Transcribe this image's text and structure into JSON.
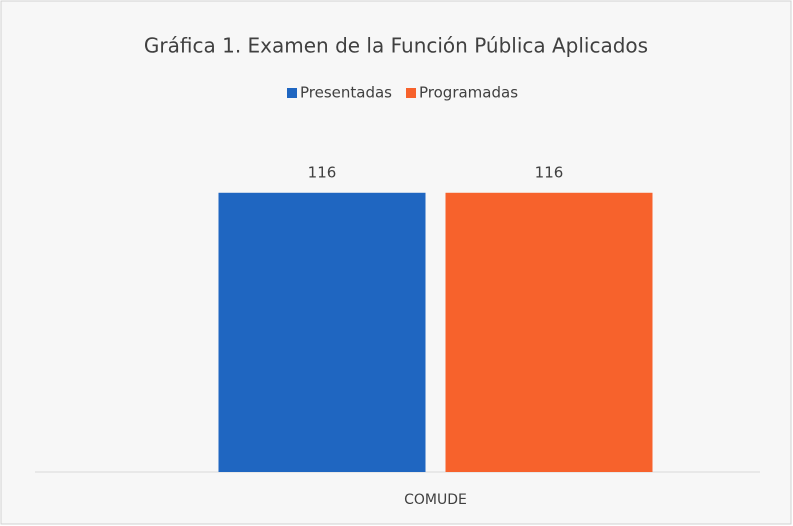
{
  "chart_data": {
    "type": "bar",
    "title": "Gráfica 1. Examen de la Función Pública  Aplicados",
    "categories": [
      "COMUDE"
    ],
    "series": [
      {
        "name": "Presentadas",
        "color": "#1f66c1",
        "values": [
          116
        ]
      },
      {
        "name": "Programadas",
        "color": "#f7622c",
        "values": [
          116
        ]
      }
    ],
    "ylim": [
      0,
      140
    ],
    "legend": "top"
  }
}
